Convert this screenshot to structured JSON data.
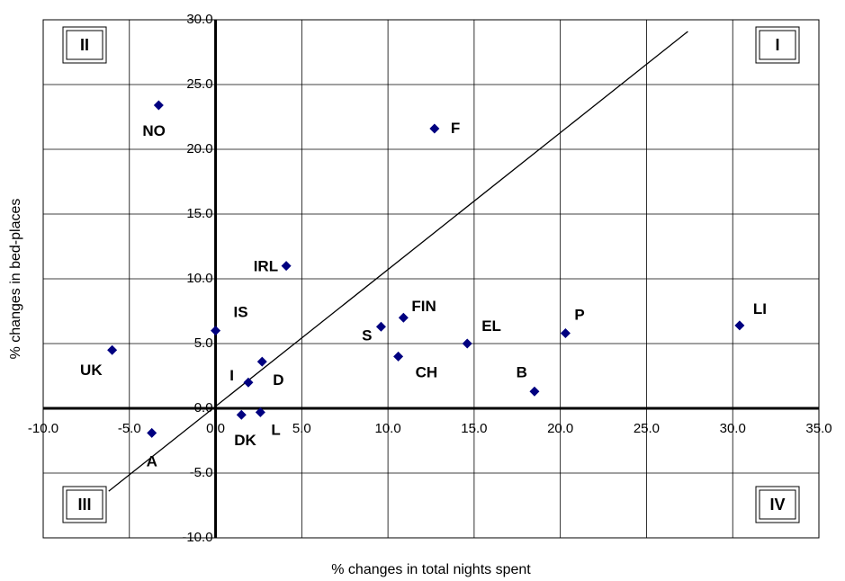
{
  "chart_data": {
    "type": "scatter",
    "title": "",
    "xlabel": "% changes in total nights spent",
    "ylabel": "% changes in bed-places",
    "xlim": [
      -10,
      35
    ],
    "ylim": [
      -10,
      30
    ],
    "x_ticks": [
      "-10.0",
      "-5.0",
      "0.0",
      "5.0",
      "10.0",
      "15.0",
      "20.0",
      "25.0",
      "30.0",
      "35.0"
    ],
    "y_ticks": [
      "-10.0",
      "-5.0",
      "0.0",
      "5.0",
      "10.0",
      "15.0",
      "20.0",
      "25.0",
      "30.0"
    ],
    "grid": true,
    "marker_color": "#000080",
    "points": [
      {
        "label": "NO",
        "x": -3.3,
        "y": 23.4
      },
      {
        "label": "F",
        "x": 12.7,
        "y": 21.6
      },
      {
        "label": "IRL",
        "x": 4.1,
        "y": 11.0
      },
      {
        "label": "IS",
        "x": 0.0,
        "y": 6.0
      },
      {
        "label": "UK",
        "x": -6.0,
        "y": 4.5
      },
      {
        "label": "S",
        "x": 9.6,
        "y": 6.3
      },
      {
        "label": "FIN",
        "x": 10.9,
        "y": 7.0
      },
      {
        "label": "EL",
        "x": 14.6,
        "y": 5.0
      },
      {
        "label": "P",
        "x": 20.3,
        "y": 5.8
      },
      {
        "label": "LI",
        "x": 30.4,
        "y": 6.4
      },
      {
        "label": "CH",
        "x": 10.6,
        "y": 4.0
      },
      {
        "label": "D",
        "x": 2.7,
        "y": 3.6
      },
      {
        "label": "I",
        "x": 1.9,
        "y": 2.0
      },
      {
        "label": "B",
        "x": 18.5,
        "y": 1.3
      },
      {
        "label": "DK",
        "x": 1.5,
        "y": -0.5
      },
      {
        "label": "L",
        "x": 2.6,
        "y": -0.3
      },
      {
        "label": "A",
        "x": -3.7,
        "y": -1.9
      }
    ],
    "trend_line": {
      "from": [
        -6.2,
        -6.4
      ],
      "to": [
        27.4,
        29.1
      ]
    },
    "quadrants": [
      {
        "label": "I",
        "corner": "top-right"
      },
      {
        "label": "II",
        "corner": "top-left"
      },
      {
        "label": "III",
        "corner": "bottom-left"
      },
      {
        "label": "IV",
        "corner": "bottom-right"
      }
    ]
  }
}
